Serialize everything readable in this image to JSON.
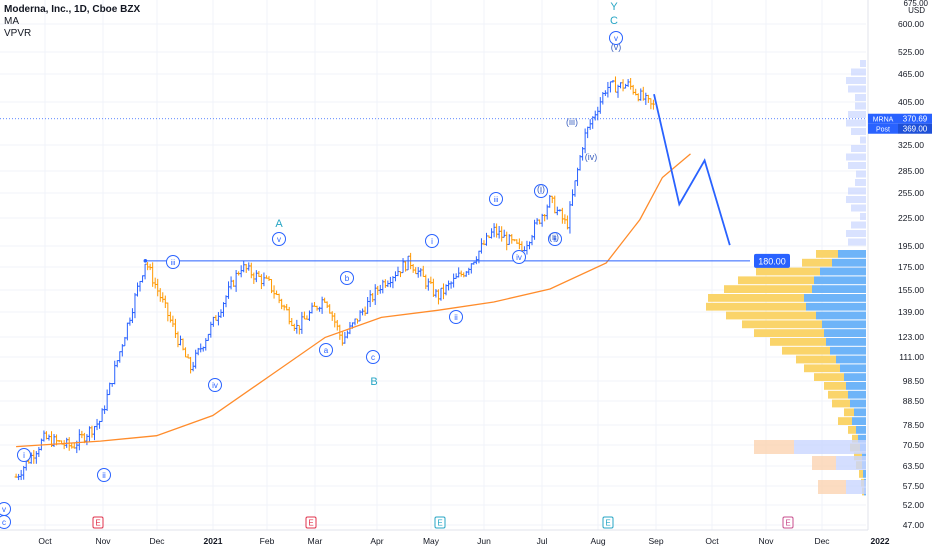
{
  "header": {
    "symbol_line": "Moderna, Inc., 1D, Cboe BZX",
    "indicator_ma": "MA",
    "indicator_vpvr": "VPVR"
  },
  "price_axis": {
    "currency": "USD",
    "top_label": "675.00",
    "labels": [
      "600.00",
      "525.00",
      "465.00",
      "405.00",
      "325.00",
      "285.00",
      "255.00",
      "225.00",
      "195.00",
      "175.00",
      "155.00",
      "139.00",
      "123.00",
      "111.00",
      "98.50",
      "88.50",
      "78.50",
      "70.50",
      "63.50",
      "57.50",
      "52.00",
      "47.00"
    ]
  },
  "time_axis": {
    "labels": [
      "Oct",
      "Nov",
      "Dec",
      "2021",
      "Feb",
      "Mar",
      "Apr",
      "May",
      "Jun",
      "Jul",
      "Aug",
      "Sep",
      "Oct",
      "Nov",
      "Dec",
      "2022"
    ],
    "bold": [
      "2021",
      "2022"
    ]
  },
  "earnings_markers": [
    "E",
    "E",
    "E",
    "E",
    "E"
  ],
  "badges": {
    "symbol": "MRNA",
    "last_price": "370.69",
    "post_label": "Post",
    "post_price": "369.00",
    "level_price": "180.00"
  },
  "wave_labels": {
    "major": [
      "A",
      "B",
      "C",
      "Y"
    ],
    "circled": [
      "c",
      "v",
      "i",
      "ii",
      "iii",
      "iv",
      "v",
      "a",
      "b",
      "c",
      "i",
      "ii",
      "iii",
      "iv",
      "i",
      "ii",
      "v"
    ],
    "roman": [
      "(i)",
      "(ii)",
      "(iii)",
      "(iv)",
      "(v)"
    ]
  },
  "colors": {
    "up": "#2962ff",
    "down": "#ff9800",
    "ma": "#ff8c2b",
    "projection": "#2962ff",
    "level": "#2962ff",
    "wave_circle": "#2962ff",
    "wave_letter": "#26a5c4",
    "vpvr_up": "#5eacf7",
    "vpvr_down": "#f9cf5a",
    "earnings": "#e0314b",
    "earnings_future": "#c84d8c"
  },
  "chart_data": {
    "type": "candlestick",
    "series_ma_color": "#ff8c2b",
    "log_scale": true,
    "ylim": [
      47,
      675
    ],
    "horizontal_level": 180,
    "last_close": 370.69,
    "post_market": 369.0,
    "ma_path": [
      [
        0.5,
        70
      ],
      [
        2,
        72
      ],
      [
        3,
        74
      ],
      [
        4,
        82
      ],
      [
        5,
        100
      ],
      [
        6,
        122
      ],
      [
        7,
        135
      ],
      [
        8,
        140
      ],
      [
        9,
        146
      ],
      [
        10,
        156
      ],
      [
        11,
        178
      ],
      [
        11.6,
        222
      ],
      [
        12,
        275
      ],
      [
        12.5,
        310
      ]
    ],
    "price_path": [
      [
        0.5,
        60
      ],
      [
        1,
        73
      ],
      [
        1.5,
        70
      ],
      [
        2,
        80
      ],
      [
        2.8,
        180
      ],
      [
        3.6,
        104
      ],
      [
        4.5,
        175
      ],
      [
        5,
        160
      ],
      [
        5.5,
        128
      ],
      [
        6,
        150
      ],
      [
        6.3,
        120
      ],
      [
        7,
        160
      ],
      [
        7.5,
        180
      ],
      [
        8,
        150
      ],
      [
        8.5,
        172
      ],
      [
        9,
        210
      ],
      [
        9.5,
        190
      ],
      [
        10,
        245
      ],
      [
        10.3,
        215
      ],
      [
        10.6,
        335
      ],
      [
        11,
        435
      ],
      [
        11.4,
        440
      ],
      [
        11.8,
        395
      ]
    ],
    "projection_path": [
      [
        11.85,
        420
      ],
      [
        12.3,
        240
      ],
      [
        12.75,
        300
      ],
      [
        13.2,
        195
      ]
    ]
  }
}
